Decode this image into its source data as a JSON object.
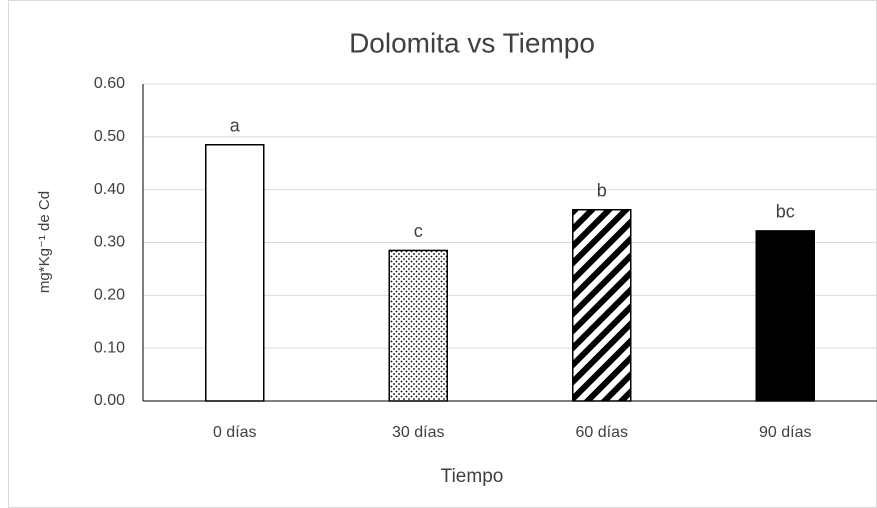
{
  "chart_data": {
    "type": "bar",
    "title": "Dolomita vs Tiempo",
    "x_label": "Tiempo",
    "y_label": "mg*Kg⁻¹ de Cd",
    "categories": [
      "0 días",
      "30 días",
      "60 días",
      "90 días"
    ],
    "values": [
      0.485,
      0.285,
      0.362,
      0.322
    ],
    "annotations": [
      "a",
      "c",
      "b",
      "bc"
    ],
    "patterns": [
      "none",
      "dots",
      "diagonal",
      "solid"
    ],
    "color": "#000000",
    "ylim": [
      0,
      0.6
    ],
    "yticks": [
      {
        "value": 0,
        "label": "0.00"
      },
      {
        "value": 0.1,
        "label": "0.10"
      },
      {
        "value": 0.2,
        "label": "0.20"
      },
      {
        "value": 0.3,
        "label": "0.30"
      },
      {
        "value": 0.4,
        "label": "0.40"
      },
      {
        "value": 0.5,
        "label": "0.50"
      },
      {
        "value": 0.6,
        "label": "0.60"
      }
    ],
    "grid": true
  }
}
